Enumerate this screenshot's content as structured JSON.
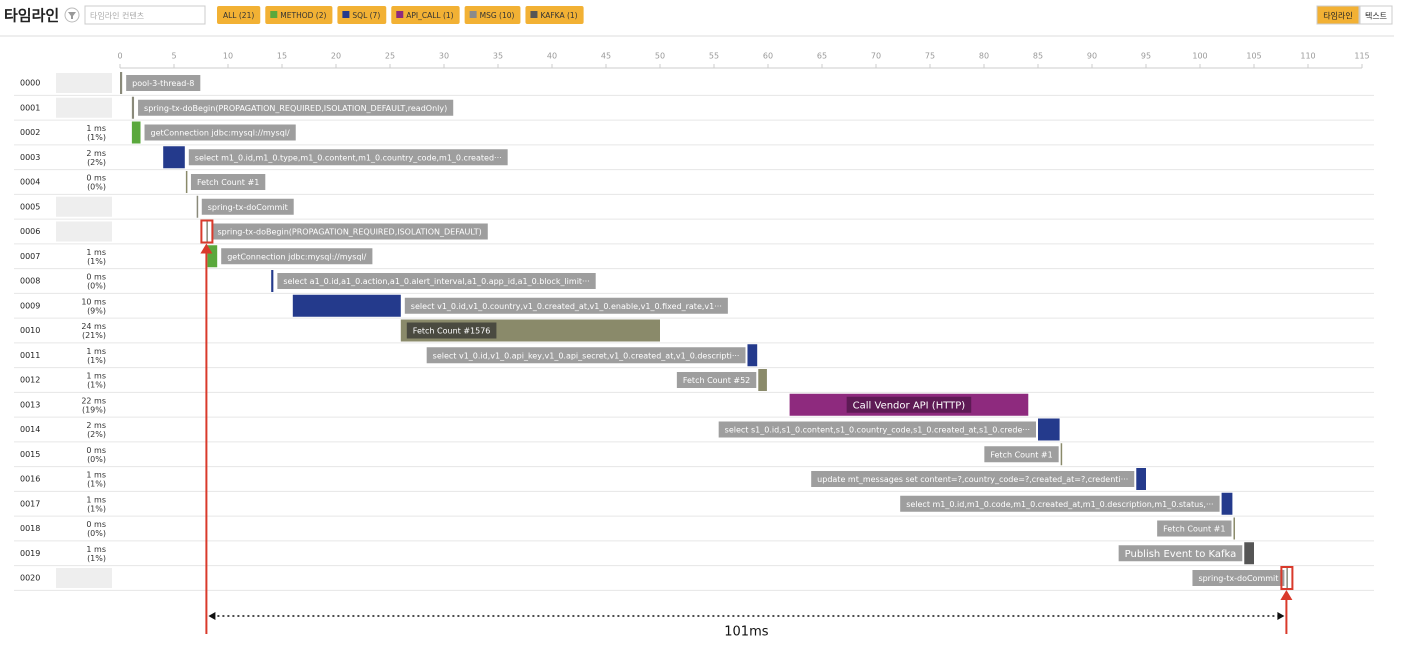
{
  "header": {
    "title": "타임라인",
    "search_placeholder": "타임라인 컨텐츠",
    "filters": [
      {
        "label": "ALL (21)",
        "color": null
      },
      {
        "label": "METHOD (2)",
        "color": "#5aa83c"
      },
      {
        "label": "SQL (7)",
        "color": "#243a8c"
      },
      {
        "label": "API_CALL (1)",
        "color": "#8e2a7e"
      },
      {
        "label": "MSG (10)",
        "color": "#8a8a8a"
      },
      {
        "label": "KAFKA (1)",
        "color": "#555555"
      }
    ],
    "view_tabs": [
      "타임라인",
      "텍스트"
    ]
  },
  "timeline": {
    "xlim": [
      0,
      115
    ],
    "xticks": [
      0,
      5,
      10,
      15,
      20,
      25,
      30,
      35,
      40,
      45,
      50,
      55,
      60,
      65,
      70,
      75,
      80,
      85,
      90,
      95,
      100,
      105,
      110,
      115
    ],
    "rows": [
      {
        "id": "0000",
        "duration": null,
        "percent": null,
        "label": "pool-3-thread-8",
        "start": 0,
        "end": 0.2,
        "color": "#8a8a7a"
      },
      {
        "id": "0001",
        "duration": null,
        "percent": null,
        "label": "spring-tx-doBegin(PROPAGATION_REQUIRED,ISOLATION_DEFAULT,readOnly)",
        "start": 1.1,
        "end": 1.3,
        "color": "#8a8a7a"
      },
      {
        "id": "0002",
        "duration": "1 ms",
        "percent": "(1%)",
        "label": "getConnection jdbc:mysql://mysql/",
        "start": 1.1,
        "end": 1.9,
        "color": "#5aa83c"
      },
      {
        "id": "0003",
        "duration": "2 ms",
        "percent": "(2%)",
        "label": "select m1_0.id,m1_0.type,m1_0.content,m1_0.country_code,m1_0.created···",
        "start": 4.0,
        "end": 6.0,
        "color": "#243a8c"
      },
      {
        "id": "0004",
        "duration": "0 ms",
        "percent": "(0%)",
        "label": "Fetch Count #1",
        "start": 6.1,
        "end": 6.2,
        "color": "#8a8a6a"
      },
      {
        "id": "0005",
        "duration": null,
        "percent": null,
        "label": "spring-tx-doCommit",
        "start": 7.1,
        "end": 7.2,
        "color": "#8a8a7a"
      },
      {
        "id": "0006",
        "duration": null,
        "percent": null,
        "label": "spring-tx-doBegin(PROPAGATION_REQUIRED,ISOLATION_DEFAULT)",
        "start": 8.0,
        "end": 8.1,
        "color": "#8a8a7a"
      },
      {
        "id": "0007",
        "duration": "1 ms",
        "percent": "(1%)",
        "label": "getConnection jdbc:mysql://mysql/",
        "start": 8.1,
        "end": 9.0,
        "color": "#5aa83c"
      },
      {
        "id": "0008",
        "duration": "0 ms",
        "percent": "(0%)",
        "label": "select a1_0.id,a1_0.action,a1_0.alert_interval,a1_0.app_id,a1_0.block_limit···",
        "start": 14.0,
        "end": 14.2,
        "color": "#243a8c"
      },
      {
        "id": "0009",
        "duration": "10 ms",
        "percent": "(9%)",
        "label": "select v1_0.id,v1_0.country,v1_0.created_at,v1_0.enable,v1_0.fixed_rate,v1···",
        "start": 16.0,
        "end": 26.0,
        "color": "#243a8c"
      },
      {
        "id": "0010",
        "duration": "24 ms",
        "percent": "(21%)",
        "label": "Fetch Count #1576",
        "start": 26.0,
        "end": 50.0,
        "color": "#8a8a6a"
      },
      {
        "id": "0011",
        "duration": "1 ms",
        "percent": "(1%)",
        "label": "select v1_0.id,v1_0.api_key,v1_0.api_secret,v1_0.created_at,v1_0.descripti···",
        "start": 58.1,
        "end": 59.0,
        "color": "#243a8c"
      },
      {
        "id": "0012",
        "duration": "1 ms",
        "percent": "(1%)",
        "label": "Fetch Count #52",
        "start": 59.1,
        "end": 59.9,
        "color": "#8a8a6a"
      },
      {
        "id": "0013",
        "duration": "22 ms",
        "percent": "(19%)",
        "label": "Call Vendor API (HTTP)",
        "start": 62.0,
        "end": 84.1,
        "color": "#8e2a7e"
      },
      {
        "id": "0014",
        "duration": "2 ms",
        "percent": "(2%)",
        "label": "select s1_0.id,s1_0.content,s1_0.country_code,s1_0.created_at,s1_0.crede···",
        "start": 85.0,
        "end": 87.0,
        "color": "#243a8c"
      },
      {
        "id": "0015",
        "duration": "0 ms",
        "percent": "(0%)",
        "label": "Fetch Count #1",
        "start": 87.1,
        "end": 87.2,
        "color": "#8a8a6a"
      },
      {
        "id": "0016",
        "duration": "1 ms",
        "percent": "(1%)",
        "label": "update mt_messages set content=?,country_code=?,created_at=?,credenti···",
        "start": 94.1,
        "end": 95.0,
        "color": "#243a8c"
      },
      {
        "id": "0017",
        "duration": "1 ms",
        "percent": "(1%)",
        "label": "select m1_0.id,m1_0.code,m1_0.created_at,m1_0.description,m1_0.status,···",
        "start": 102.0,
        "end": 103.0,
        "color": "#243a8c"
      },
      {
        "id": "0018",
        "duration": "0 ms",
        "percent": "(0%)",
        "label": "Fetch Count #1",
        "start": 103.1,
        "end": 103.2,
        "color": "#8a8a6a"
      },
      {
        "id": "0019",
        "duration": "1 ms",
        "percent": "(1%)",
        "label": "Publish Event to Kafka",
        "start": 104.1,
        "end": 105.0,
        "color": "#555555"
      },
      {
        "id": "0020",
        "duration": null,
        "percent": null,
        "label": "spring-tx-doCommit",
        "start": 108.0,
        "end": 108.1,
        "color": "#8a8a7a"
      }
    ]
  },
  "annotation": {
    "label": "101ms",
    "start": 8.0,
    "end": 108.0,
    "color": "#d93a2b"
  }
}
